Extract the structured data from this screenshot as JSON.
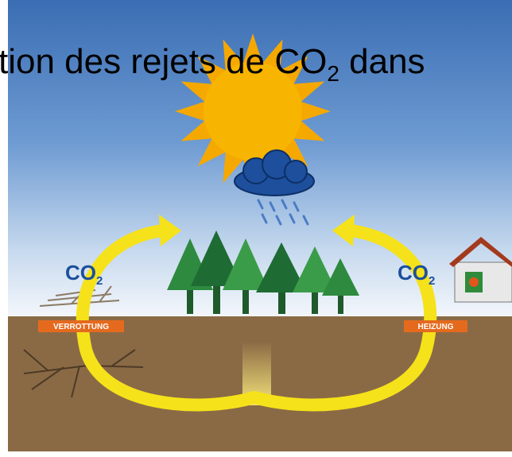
{
  "title": {
    "before": "tion des rejets de CO",
    "sub": "2",
    "after": " dans"
  },
  "left_label": {
    "main": "CO",
    "sub": "2"
  },
  "right_label": {
    "main": "CO",
    "sub": "2"
  },
  "left_tag": "VERROTTUNG",
  "right_tag": "HEIZUNG"
}
